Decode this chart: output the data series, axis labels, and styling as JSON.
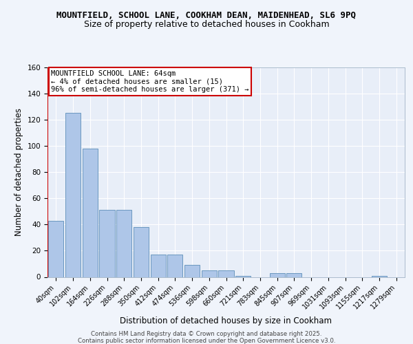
{
  "title_line1": "MOUNTFIELD, SCHOOL LANE, COOKHAM DEAN, MAIDENHEAD, SL6 9PQ",
  "title_line2": "Size of property relative to detached houses in Cookham",
  "xlabel": "Distribution of detached houses by size in Cookham",
  "ylabel": "Number of detached properties",
  "categories": [
    "40sqm",
    "102sqm",
    "164sqm",
    "226sqm",
    "288sqm",
    "350sqm",
    "412sqm",
    "474sqm",
    "536sqm",
    "598sqm",
    "660sqm",
    "721sqm",
    "783sqm",
    "845sqm",
    "907sqm",
    "969sqm",
    "1031sqm",
    "1093sqm",
    "1155sqm",
    "1217sqm",
    "1279sqm"
  ],
  "values": [
    43,
    125,
    98,
    51,
    51,
    38,
    17,
    17,
    9,
    5,
    5,
    1,
    0,
    3,
    3,
    0,
    0,
    0,
    0,
    1,
    0
  ],
  "bar_color": "#aec6e8",
  "bar_edge_color": "#5b8db8",
  "annotation_box_text": "MOUNTFIELD SCHOOL LANE: 64sqm\n← 4% of detached houses are smaller (15)\n96% of semi-detached houses are larger (371) →",
  "annotation_box_edge": "#cc0000",
  "annotation_box_bg": "#ffffff",
  "vline_color": "#cc0000",
  "bg_color": "#e8eef8",
  "grid_color": "#ffffff",
  "fig_bg_color": "#f0f4fb",
  "ylim": [
    0,
    160
  ],
  "yticks": [
    0,
    20,
    40,
    60,
    80,
    100,
    120,
    140,
    160
  ],
  "footer_line1": "Contains HM Land Registry data © Crown copyright and database right 2025.",
  "footer_line2": "Contains public sector information licensed under the Open Government Licence v3.0.",
  "title_fontsize": 9,
  "subtitle_fontsize": 9,
  "tick_fontsize": 7,
  "ylabel_fontsize": 8.5,
  "xlabel_fontsize": 8.5,
  "footer_fontsize": 6.2
}
